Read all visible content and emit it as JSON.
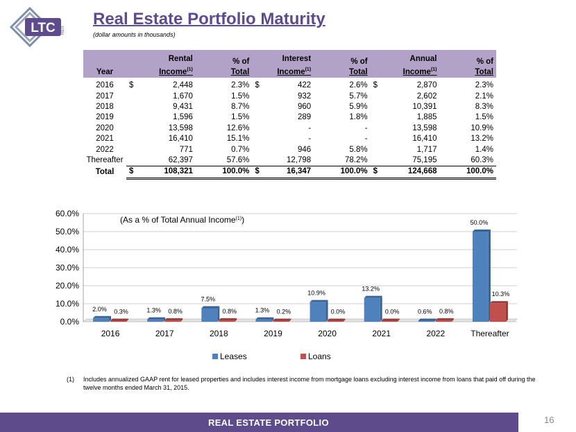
{
  "logo": {
    "text": "LTC",
    "subtext": "REIT"
  },
  "title": "Real Estate Portfolio Maturity",
  "subtitle": "(dollar amounts in thousands)",
  "table": {
    "headers": {
      "year": "Year",
      "rental_1": "Rental",
      "rental_2": "Income",
      "pct1_1": "% of",
      "pct1_2": "Total",
      "interest_1": "Interest",
      "interest_2": "Income",
      "pct2_1": "% of",
      "pct2_2": "Total",
      "annual_1": "Annual",
      "annual_2": "Income",
      "pct3_1": "% of",
      "pct3_2": "Total",
      "footnote_mark": "(1)"
    },
    "dollar_sign": "$",
    "rows": [
      {
        "year": "2016",
        "rental": "2,448",
        "rental_pct": "2.3%",
        "interest": "422",
        "interest_pct": "2.6%",
        "annual": "2,870",
        "annual_pct": "2.3%"
      },
      {
        "year": "2017",
        "rental": "1,670",
        "rental_pct": "1.5%",
        "interest": "932",
        "interest_pct": "5.7%",
        "annual": "2,602",
        "annual_pct": "2.1%"
      },
      {
        "year": "2018",
        "rental": "9,431",
        "rental_pct": "8.7%",
        "interest": "960",
        "interest_pct": "5.9%",
        "annual": "10,391",
        "annual_pct": "8.3%"
      },
      {
        "year": "2019",
        "rental": "1,596",
        "rental_pct": "1.5%",
        "interest": "289",
        "interest_pct": "1.8%",
        "annual": "1,885",
        "annual_pct": "1.5%"
      },
      {
        "year": "2020",
        "rental": "13,598",
        "rental_pct": "12.6%",
        "interest": "-",
        "interest_pct": "-",
        "annual": "13,598",
        "annual_pct": "10.9%"
      },
      {
        "year": "2021",
        "rental": "16,410",
        "rental_pct": "15.1%",
        "interest": "-",
        "interest_pct": "-",
        "annual": "16,410",
        "annual_pct": "13.2%"
      },
      {
        "year": "2022",
        "rental": "771",
        "rental_pct": "0.7%",
        "interest": "946",
        "interest_pct": "5.8%",
        "annual": "1,717",
        "annual_pct": "1.4%"
      },
      {
        "year": "Thereafter",
        "rental": "62,397",
        "rental_pct": "57.6%",
        "interest": "12,798",
        "interest_pct": "78.2%",
        "annual": "75,195",
        "annual_pct": "60.3%"
      }
    ],
    "total": {
      "year": "Total",
      "rental": "108,321",
      "rental_pct": "100.0%",
      "interest": "16,347",
      "interest_pct": "100.0%",
      "annual": "124,668",
      "annual_pct": "100.0%"
    }
  },
  "chart_data": {
    "type": "bar",
    "title": "(As a % of Total Annual Income",
    "title_mark": "(1)",
    "title_close": ")",
    "categories": [
      "2016",
      "2017",
      "2018",
      "2019",
      "2020",
      "2021",
      "2022",
      "Thereafter"
    ],
    "series": [
      {
        "name": "Leases",
        "color": "#4f81bd",
        "values": [
          2.0,
          1.3,
          7.5,
          1.3,
          10.9,
          13.2,
          0.6,
          50.0
        ],
        "labels": [
          "2.0%",
          "1.3%",
          "7.5%",
          "1.3%",
          "10.9%",
          "13.2%",
          "0.6%",
          "50.0%"
        ]
      },
      {
        "name": "Loans",
        "color": "#c0504d",
        "values": [
          0.3,
          0.8,
          0.8,
          0.2,
          0.0,
          0.0,
          0.8,
          10.3
        ],
        "labels": [
          "0.3%",
          "0.8%",
          "0.8%",
          "0.2%",
          "0.0%",
          "0.0%",
          "0.8%",
          "10.3%"
        ]
      }
    ],
    "ylim": [
      0,
      60
    ],
    "yticks": [
      "0.0%",
      "10.0%",
      "20.0%",
      "30.0%",
      "40.0%",
      "50.0%",
      "60.0%"
    ],
    "grid": true,
    "legend": "bottom"
  },
  "footnote": {
    "num": "(1)",
    "text": "Includes annualized GAAP rent for leased properties and includes interest income from mortgage loans excluding interest income from loans that paid off during the twelve months ended March 31, 2015."
  },
  "footer": {
    "label": "REAL ESTATE PORTFOLIO",
    "page": "16"
  },
  "colors": {
    "brand": "#5e4b8b",
    "header_bg": "#b3a2c7",
    "leases": "#4f81bd",
    "loans": "#c0504d"
  }
}
